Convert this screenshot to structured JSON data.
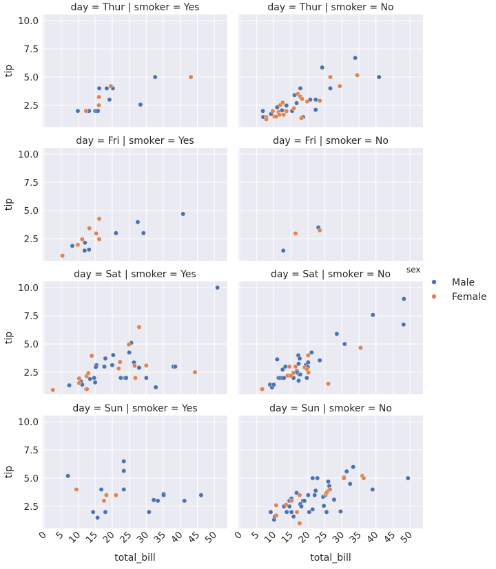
{
  "chart_data": {
    "type": "scatter",
    "layout": "facet-grid",
    "xlabel": "total_bill",
    "ylabel": "tip",
    "xlim": [
      -0.4,
      53.8
    ],
    "ylim": [
      0.55,
      10.55
    ],
    "xticks": [
      0,
      5,
      10,
      15,
      20,
      25,
      30,
      35,
      40,
      45,
      50
    ],
    "yticks": [
      2.5,
      5.0,
      7.5,
      10.0
    ],
    "ytick_labels": [
      "2.5",
      "5.0",
      "7.5",
      "10.0"
    ],
    "grid": true,
    "legend": {
      "title": "sex",
      "placement": "right",
      "entries": [
        {
          "name": "Male",
          "color": "#4c72b0"
        },
        {
          "name": "Female",
          "color": "#dd8452"
        }
      ]
    },
    "colors": {
      "Male": "#4c72b0",
      "Female": "#dd8452",
      "panel_bg": "#eaeaf2",
      "grid": "#ffffff"
    },
    "panels": [
      {
        "title": "day = Thur | smoker = Yes",
        "Male": [
          [
            9.9,
            2
          ],
          [
            13.2,
            2
          ],
          [
            15,
            2
          ],
          [
            15.4,
            2
          ],
          [
            15.8,
            2
          ],
          [
            16.2,
            4
          ],
          [
            18.4,
            4
          ],
          [
            19.2,
            3
          ],
          [
            20.2,
            4
          ],
          [
            28.3,
            2.56
          ],
          [
            32.6,
            5
          ]
        ],
        "Female": [
          [
            12.3,
            2
          ],
          [
            16.1,
            2.5
          ],
          [
            16.1,
            3.23
          ],
          [
            19.6,
            4.2
          ],
          [
            43.1,
            5
          ]
        ]
      },
      {
        "title": "day = Thur | smoker = No",
        "Male": [
          [
            6.8,
            2
          ],
          [
            6.9,
            1.46
          ],
          [
            9.2,
            1.73
          ],
          [
            11.0,
            2.32
          ],
          [
            12.4,
            2.05
          ],
          [
            13.7,
            2.48
          ],
          [
            15.4,
            2
          ],
          [
            16.7,
            2.69
          ],
          [
            16.1,
            3.4
          ],
          [
            17.8,
            4
          ],
          [
            18.6,
            1.46
          ],
          [
            20.7,
            3
          ],
          [
            22.3,
            3
          ],
          [
            22.3,
            2.1
          ],
          [
            24.2,
            5.85
          ],
          [
            26.6,
            4
          ],
          [
            33.9,
            6.7
          ],
          [
            40.9,
            5
          ]
        ],
        "Female": [
          [
            7.8,
            1.45
          ],
          [
            7.8,
            1.26
          ],
          [
            9.7,
            1.98
          ],
          [
            10.2,
            1.5
          ],
          [
            10.7,
            1.5
          ],
          [
            11.4,
            1.9
          ],
          [
            11.7,
            1.67
          ],
          [
            11.9,
            2.52
          ],
          [
            12.6,
            2.74
          ],
          [
            12.9,
            1.66
          ],
          [
            13.7,
            1.98
          ],
          [
            15.9,
            2.23
          ],
          [
            17.1,
            3.5
          ],
          [
            17.8,
            3.27
          ],
          [
            18.3,
            3.06
          ],
          [
            18.1,
            1.36
          ],
          [
            19.8,
            2.83
          ],
          [
            23.5,
            2.9
          ],
          [
            26.6,
            5
          ],
          [
            29.4,
            4.2
          ],
          [
            34.5,
            5.17
          ]
        ]
      },
      {
        "title": "day = Fri | smoker = Yes",
        "Male": [
          [
            8.3,
            1.87
          ],
          [
            12.0,
            2.15
          ],
          [
            11.9,
            1.45
          ],
          [
            13.2,
            1.54
          ],
          [
            21.1,
            3.0
          ],
          [
            27.5,
            3.98
          ],
          [
            29.2,
            3.0
          ],
          [
            40.8,
            4.7
          ]
        ],
        "Female": [
          [
            5.4,
            1.0
          ],
          [
            9.9,
            1.97
          ],
          [
            11.2,
            2.46
          ],
          [
            13.3,
            3.43
          ],
          [
            15.3,
            2.97
          ],
          [
            16.2,
            2.46
          ],
          [
            16.2,
            4.27
          ]
        ]
      },
      {
        "title": "day = Fri | smoker = No",
        "Male": [
          [
            12.8,
            1.45
          ],
          [
            23.1,
            3.5
          ]
        ],
        "Female": [
          [
            16.4,
            2.97
          ],
          [
            23.5,
            3.25
          ]
        ]
      },
      {
        "title": "day = Sat | smoker = Yes",
        "Male": [
          [
            50.9,
            10.0
          ],
          [
            7.4,
            1.34
          ],
          [
            10.8,
            1.7
          ],
          [
            11.2,
            1.4
          ],
          [
            13.5,
            1.9
          ],
          [
            14.7,
            2.0
          ],
          [
            15.0,
            1.6
          ],
          [
            12.4,
            1.0
          ],
          [
            15.4,
            3.13
          ],
          [
            15.2,
            2.97
          ],
          [
            18.0,
            3.72
          ],
          [
            17.7,
            3.0
          ],
          [
            20.0,
            3.13
          ],
          [
            20.3,
            4.02
          ],
          [
            22.5,
            2.0
          ],
          [
            23.8,
            2.0
          ],
          [
            24.1,
            2.0
          ],
          [
            25.0,
            4.25
          ],
          [
            25.6,
            5.1
          ],
          [
            26.4,
            3.37
          ],
          [
            27.9,
            2.9
          ],
          [
            30.0,
            2.0
          ],
          [
            32.8,
            1.17
          ],
          [
            38.0,
            3.0
          ],
          [
            38.5,
            3.0
          ]
        ],
        "Female": [
          [
            2.6,
            0.93
          ],
          [
            10.3,
            1.95
          ],
          [
            10.3,
            1.54
          ],
          [
            12.5,
            2.15
          ],
          [
            13.0,
            2.42
          ],
          [
            12.6,
            1.0
          ],
          [
            14.0,
            3.96
          ],
          [
            22.3,
            3.41
          ],
          [
            21.9,
            2.83
          ],
          [
            24.9,
            4.96
          ],
          [
            26.6,
            3.07
          ],
          [
            27.9,
            6.5
          ],
          [
            26.8,
            2.0
          ],
          [
            30.0,
            3.09
          ],
          [
            44.3,
            2.5
          ]
        ]
      },
      {
        "title": "day = Sat | smoker = No",
        "Male": [
          [
            8.9,
            1.4
          ],
          [
            9.5,
            1.15
          ],
          [
            10.0,
            1.4
          ],
          [
            11.0,
            3.64
          ],
          [
            11.4,
            2.0
          ],
          [
            11.9,
            2.0
          ],
          [
            12.5,
            2.0
          ],
          [
            13.0,
            2.0
          ],
          [
            12.6,
            2.74
          ],
          [
            13.4,
            3.0
          ],
          [
            15.8,
            2.0
          ],
          [
            16.8,
            2.6
          ],
          [
            17.3,
            3.25
          ],
          [
            16.9,
            2.47
          ],
          [
            17.5,
            2.3
          ],
          [
            17.8,
            2.3
          ],
          [
            17.3,
            1.75
          ],
          [
            17.2,
            4.0
          ],
          [
            17.6,
            3.72
          ],
          [
            19.4,
            3.13
          ],
          [
            20.1,
            3.38
          ],
          [
            20.0,
            2.97
          ],
          [
            19.7,
            2.0
          ],
          [
            21.1,
            4.25
          ],
          [
            23.5,
            3.55
          ],
          [
            28.5,
            5.9
          ],
          [
            30.8,
            5.0
          ],
          [
            39.1,
            7.58
          ],
          [
            48.1,
            6.73
          ],
          [
            48.2,
            9.0
          ]
        ],
        "Female": [
          [
            6.6,
            1.0
          ],
          [
            14.1,
            2.2
          ],
          [
            14.6,
            3.0
          ],
          [
            15.0,
            2.2
          ],
          [
            15.8,
            2.45
          ],
          [
            16.4,
            3.0
          ],
          [
            19.1,
            2.92
          ],
          [
            19.8,
            2.75
          ],
          [
            20.2,
            2.47
          ],
          [
            20.1,
            4.0
          ],
          [
            26.0,
            1.48
          ],
          [
            35.5,
            4.67
          ]
        ]
      },
      {
        "title": "day = Sun | smoker = Yes",
        "Male": [
          [
            7.0,
            5.2
          ],
          [
            14.4,
            2.0
          ],
          [
            15.7,
            1.5
          ],
          [
            16.8,
            4.0
          ],
          [
            18.0,
            2.0
          ],
          [
            23.4,
            6.5
          ],
          [
            23.4,
            5.65
          ],
          [
            23.4,
            4.0
          ],
          [
            30.8,
            2.0
          ],
          [
            32.2,
            3.07
          ],
          [
            33.4,
            3.0
          ],
          [
            35.1,
            3.6
          ],
          [
            35.1,
            3.5
          ],
          [
            41.2,
            3.0
          ],
          [
            46.1,
            3.5
          ]
        ],
        "Female": [
          [
            9.5,
            4.0
          ],
          [
            17.6,
            3.0
          ],
          [
            18.3,
            3.5
          ],
          [
            21.1,
            3.5
          ]
        ]
      },
      {
        "title": "day = Sun | smoker = No",
        "Male": [
          [
            9.1,
            2.0
          ],
          [
            10.1,
            1.32
          ],
          [
            10.3,
            1.6
          ],
          [
            13.0,
            2.5
          ],
          [
            13.8,
            2.0
          ],
          [
            14.6,
            3.0
          ],
          [
            14.6,
            2.5
          ],
          [
            15.2,
            3.2
          ],
          [
            15.2,
            2.0
          ],
          [
            15.8,
            1.6
          ],
          [
            16.7,
            3.7
          ],
          [
            17.8,
            2.7
          ],
          [
            18.1,
            2.5
          ],
          [
            18.6,
            3.0
          ],
          [
            19.0,
            3.0
          ],
          [
            20.1,
            3.5
          ],
          [
            20.4,
            2.0
          ],
          [
            21.4,
            5.0
          ],
          [
            21.4,
            2.24
          ],
          [
            22.0,
            3.5
          ],
          [
            22.3,
            3.9
          ],
          [
            22.8,
            5.0
          ],
          [
            24.5,
            3.35
          ],
          [
            24.7,
            2.55
          ],
          [
            25.2,
            3.5
          ],
          [
            25.5,
            2.0
          ],
          [
            26.0,
            4.7
          ],
          [
            26.3,
            4.3
          ],
          [
            27.7,
            3.1
          ],
          [
            29.6,
            2.05
          ],
          [
            32.4,
            4.5
          ],
          [
            31.4,
            5.6
          ],
          [
            33.3,
            6.0
          ],
          [
            39.0,
            4.0
          ],
          [
            49.4,
            5.0
          ]
        ],
        "Female": [
          [
            10.7,
            2.6
          ],
          [
            10.7,
            1.7
          ],
          [
            13.6,
            2.65
          ],
          [
            15.2,
            3.0
          ],
          [
            16.8,
            2.0
          ],
          [
            17.6,
            3.5
          ],
          [
            17.6,
            1.0
          ],
          [
            25.3,
            3.6
          ],
          [
            25.6,
            3.76
          ],
          [
            26.1,
            3.92
          ],
          [
            26.5,
            4.0
          ],
          [
            30.6,
            5.1
          ],
          [
            30.6,
            5.0
          ],
          [
            36.0,
            5.2
          ],
          [
            36.4,
            5.0
          ]
        ]
      }
    ]
  }
}
